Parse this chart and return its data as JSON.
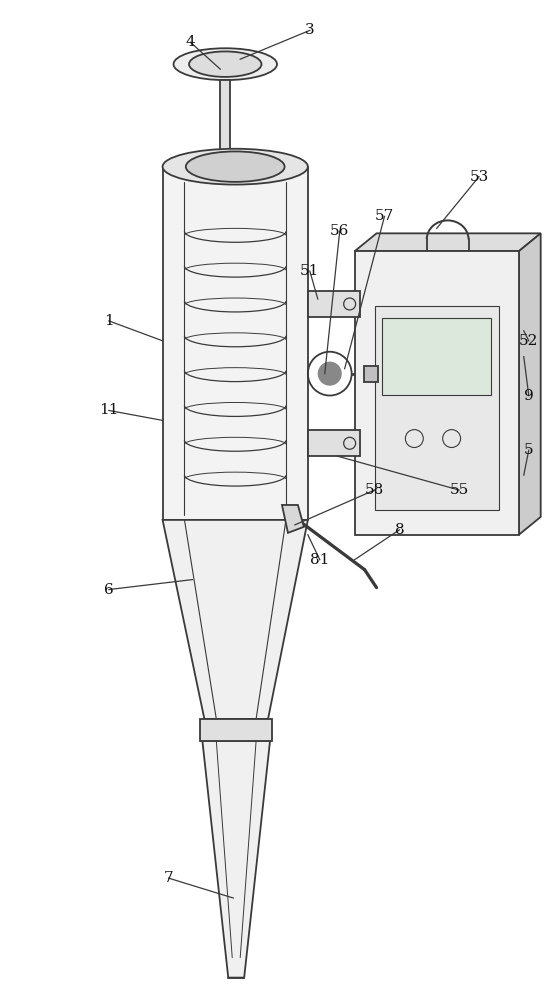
{
  "bg_color": "#ffffff",
  "line_color": "#3a3a3a",
  "line_width": 1.3,
  "fig_width": 5.58,
  "fig_height": 10.0,
  "label_fontsize": 11
}
